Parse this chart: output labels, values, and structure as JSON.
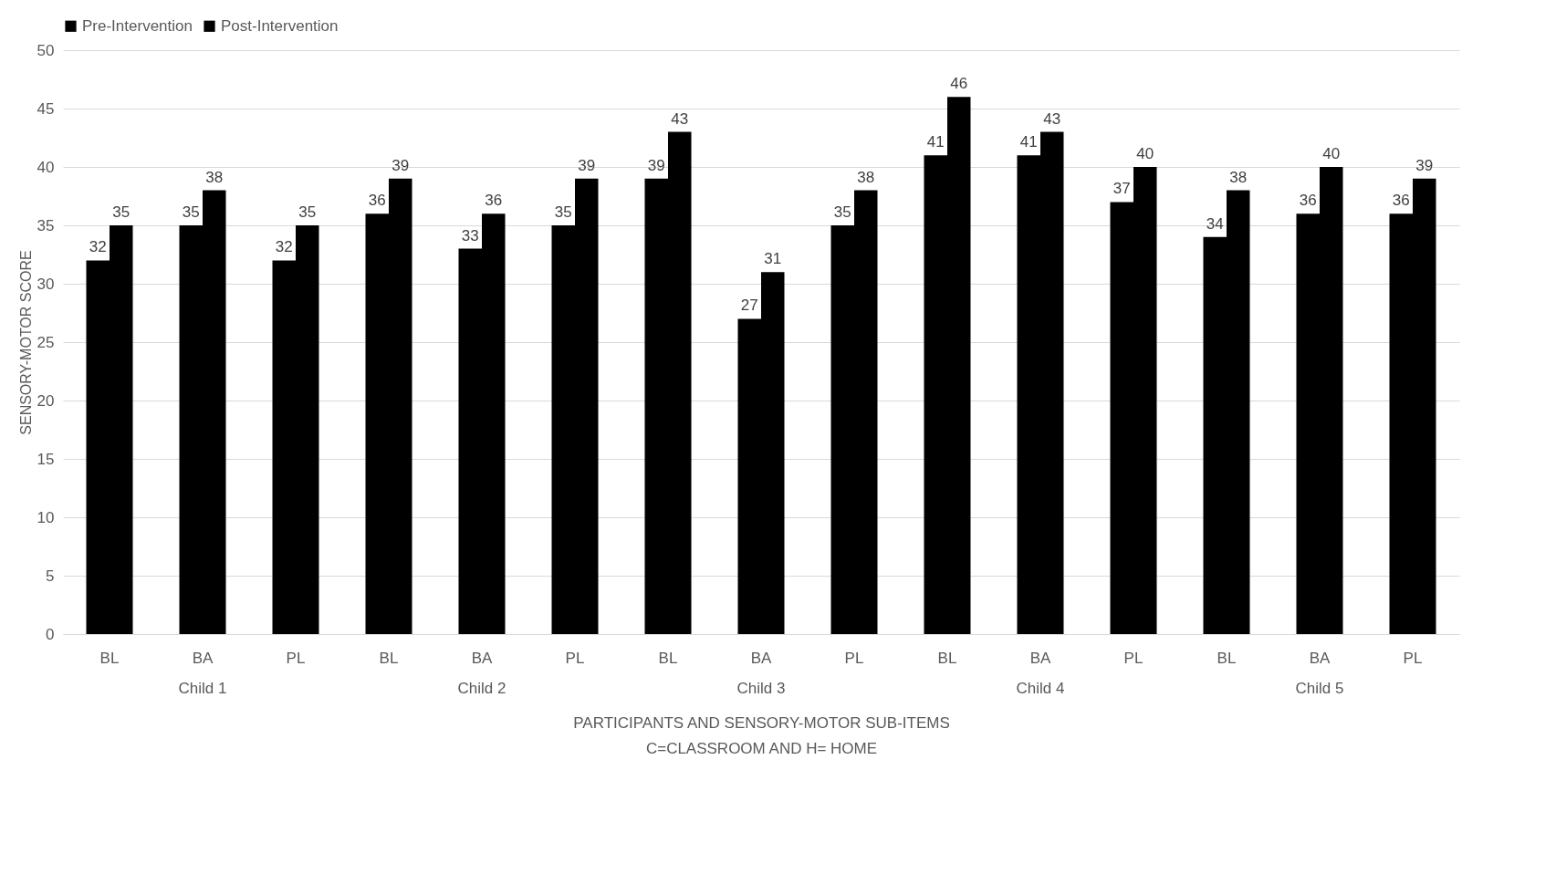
{
  "chart_data": {
    "type": "bar",
    "xlabel": "PARTICIPANTS AND SENSORY-MOTOR SUB-ITEMS",
    "ylabel": "SENSORY-MOTOR SCORE",
    "categories": [
      "BL",
      "BA",
      "PL",
      "BL",
      "BA",
      "PL",
      "BL",
      "BA",
      "PL",
      "BL",
      "BA",
      "PL",
      "BL",
      "BA",
      "PL"
    ],
    "series": [
      {
        "name": "Pre-Intervention",
        "color": "#000000",
        "values": [
          32,
          35,
          32,
          36,
          33,
          35,
          39,
          27,
          35,
          41,
          41,
          37,
          34,
          36,
          36
        ]
      },
      {
        "name": "Post-Intervention",
        "color": "#000000",
        "values": [
          35,
          38,
          35,
          39,
          36,
          39,
          43,
          31,
          38,
          46,
          43,
          40,
          38,
          40,
          39
        ]
      }
    ],
    "ylim": [
      0,
      50
    ],
    "yticks": [
      0,
      5,
      10,
      15,
      20,
      25,
      30,
      35,
      40,
      45,
      50
    ],
    "grid": "y",
    "legend": "top",
    "data_labels": true,
    "annotations": [
      "Child 1",
      "Child 2",
      "Child 3",
      "Child 4",
      "Child 5",
      "C=CLASSROOM AND H= HOME"
    ]
  }
}
